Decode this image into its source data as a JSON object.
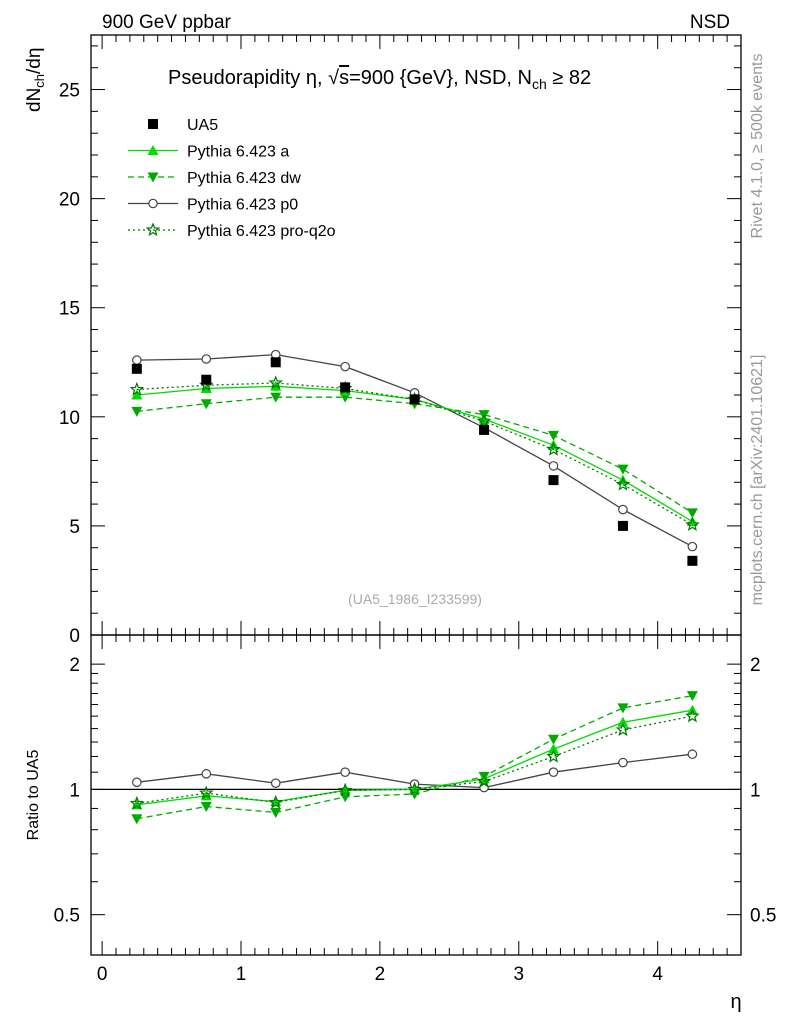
{
  "header": {
    "left": "900 GeV ppbar",
    "right": "NSD"
  },
  "side_labels": {
    "rivet": "Rivet 4.1.0, ≥ 500k events",
    "mcplots": "mcplots.cern.ch [arXiv:2401.10621]"
  },
  "colors": {
    "data": "#000000",
    "a": "#00dd00",
    "dw": "#00aa00",
    "p0": "#444444",
    "q2o": "#007700"
  },
  "chart_data": [
    {
      "type": "scatter",
      "title": "Pseudorapidity η, √s=900 {GeV}, NSD, N_ch ≥ 82",
      "title_parts": {
        "prefix": "Pseudorapidity η, ",
        "sqrt": "√",
        "s": "s",
        "mid": "=900 {GeV}, NSD, N",
        "sub": "ch",
        "suffix": " ≥ 82"
      },
      "ylabel_parts": {
        "d": "dN",
        "sub": "ch",
        "rest": "/dη"
      },
      "ylim": [
        0,
        27.5
      ],
      "yticks": [
        0,
        5,
        10,
        15,
        20,
        25
      ],
      "ytick_labels": [
        "0",
        "5",
        "10",
        "15",
        "20",
        "25"
      ],
      "watermark": "(UA5_1986_I233599)",
      "x": [
        0.25,
        0.75,
        1.25,
        1.75,
        2.25,
        2.75,
        3.25,
        3.75,
        4.25
      ],
      "series": [
        {
          "key": "data",
          "name": "UA5",
          "marker": "square",
          "line": "none",
          "values": [
            12.2,
            11.7,
            12.5,
            11.35,
            10.8,
            9.4,
            7.1,
            5.0,
            3.4
          ]
        },
        {
          "key": "a",
          "name": "Pythia 6.423 a",
          "marker": "triangle-up",
          "line": "solid",
          "values": [
            11.0,
            11.3,
            11.4,
            11.2,
            10.8,
            9.9,
            8.7,
            7.1,
            5.2
          ]
        },
        {
          "key": "dw",
          "name": "Pythia 6.423 dw",
          "marker": "triangle-down",
          "line": "dashed",
          "values": [
            10.25,
            10.6,
            10.9,
            10.9,
            10.6,
            10.1,
            9.15,
            7.6,
            5.6
          ]
        },
        {
          "key": "p0",
          "name": "Pythia 6.423 p0",
          "marker": "circle-open",
          "line": "solid",
          "values": [
            12.6,
            12.65,
            12.85,
            12.3,
            11.1,
            9.5,
            7.75,
            5.75,
            4.05
          ]
        },
        {
          "key": "q2o",
          "name": "Pythia 6.423 pro-q2o",
          "marker": "star-open",
          "line": "dotted",
          "values": [
            11.25,
            11.45,
            11.55,
            11.3,
            10.8,
            9.8,
            8.5,
            6.9,
            5.05
          ]
        }
      ]
    },
    {
      "type": "line",
      "ylabel": "Ratio to UA5",
      "yscale": "log",
      "ylim": [
        0.4,
        2.35
      ],
      "yticks": [
        0.5,
        1,
        2
      ],
      "ytick_labels": [
        "0.5",
        "1",
        "2"
      ],
      "xlabel": "η",
      "xlim": [
        -0.08,
        4.6
      ],
      "xticks": [
        0,
        1,
        2,
        3,
        4
      ],
      "xtick_labels": [
        "0",
        "1",
        "2",
        "3",
        "4"
      ],
      "x": [
        0.25,
        0.75,
        1.25,
        1.75,
        2.25,
        2.75,
        3.25,
        3.75,
        4.25
      ],
      "series": [
        {
          "key": "a",
          "name": "Pythia 6.423 a",
          "values": [
            0.918,
            0.965,
            0.935,
            0.995,
            1.0,
            1.06,
            1.25,
            1.45,
            1.55
          ]
        },
        {
          "key": "dw",
          "name": "Pythia 6.423 dw",
          "values": [
            0.85,
            0.91,
            0.88,
            0.96,
            0.975,
            1.075,
            1.32,
            1.57,
            1.68
          ]
        },
        {
          "key": "p0",
          "name": "Pythia 6.423 p0",
          "values": [
            1.04,
            1.09,
            1.035,
            1.1,
            1.03,
            1.01,
            1.1,
            1.16,
            1.215
          ]
        },
        {
          "key": "q2o",
          "name": "Pythia 6.423 pro-q2o",
          "values": [
            0.925,
            0.98,
            0.93,
            0.995,
            1.0,
            1.045,
            1.2,
            1.39,
            1.5
          ]
        }
      ]
    }
  ]
}
